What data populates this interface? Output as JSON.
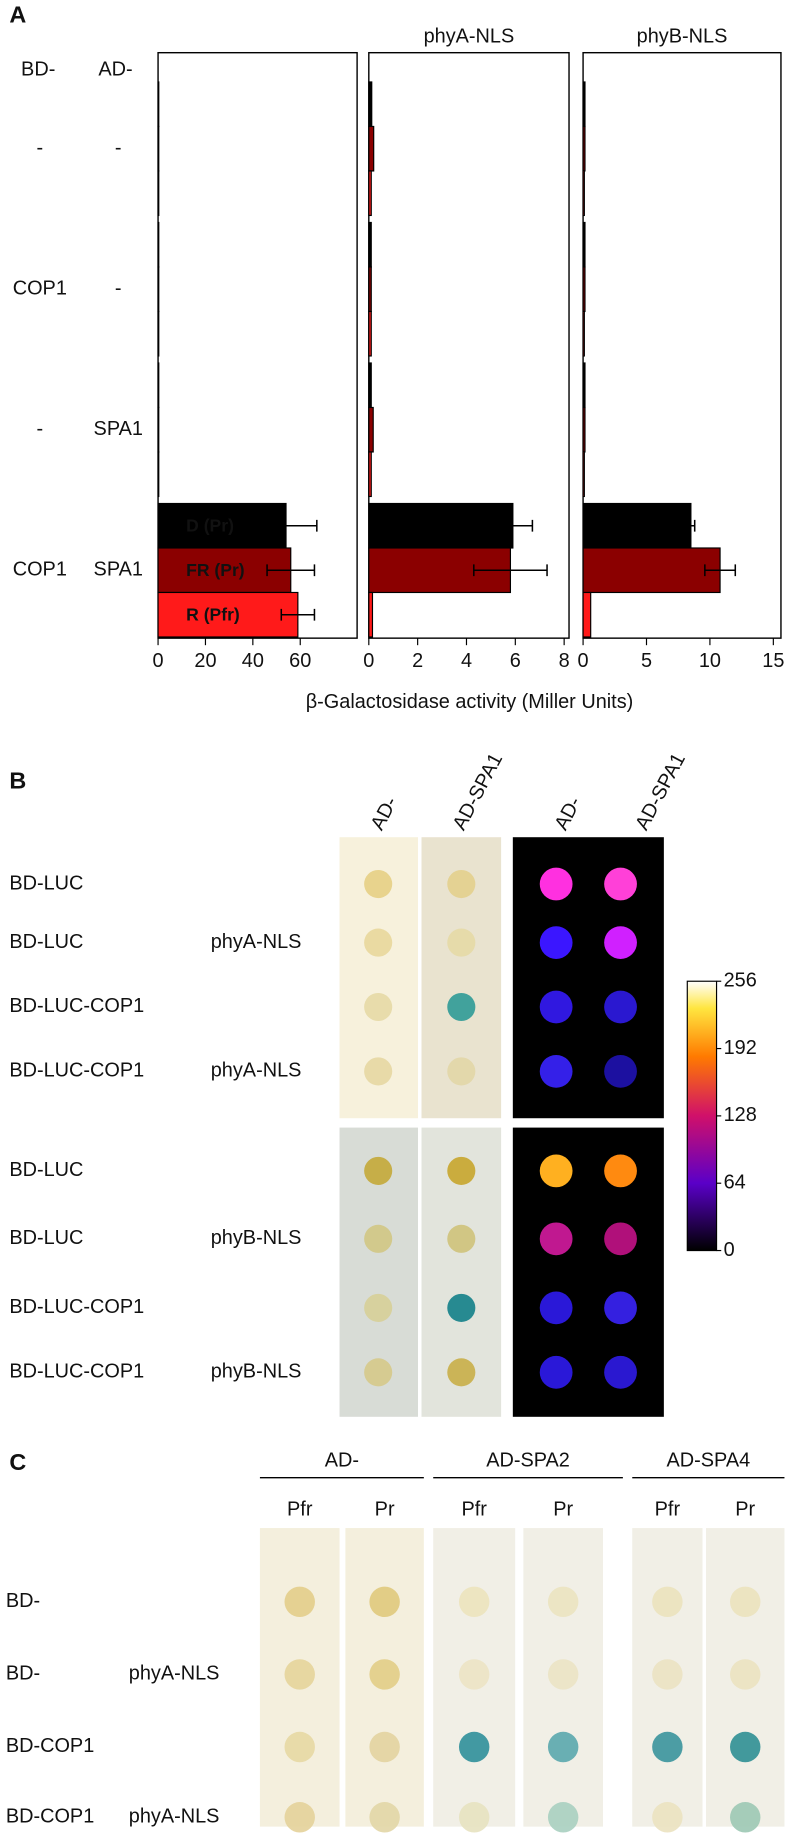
{
  "panel_labels": [
    "A",
    "B",
    "C"
  ],
  "chart_data": [
    {
      "type": "bar",
      "orientation": "horizontal",
      "header": [
        "BD-",
        "AD-"
      ],
      "categories": [
        [
          "-",
          "-"
        ],
        [
          "COP1",
          "-"
        ],
        [
          "-",
          "SPA1"
        ],
        [
          "COP1",
          "SPA1"
        ]
      ],
      "xlabel": "β-Galactosidase activity (Miller Units)",
      "xlim": [
        0,
        84
      ],
      "xticks": [
        0,
        20,
        40,
        60
      ],
      "series": [
        {
          "name": "D (Pr)",
          "color": "#000000",
          "values": [
            0.3,
            0.3,
            0.3,
            54
          ],
          "errors": [
            null,
            null,
            null,
            13
          ]
        },
        {
          "name": "FR (Pr)",
          "color": "#8b0000",
          "values": [
            0.3,
            0.3,
            0.3,
            56
          ],
          "errors": [
            null,
            null,
            null,
            10
          ]
        },
        {
          "name": "R (Pfr)",
          "color": "#ff1a1a",
          "values": [
            0.3,
            0.3,
            0.3,
            59
          ],
          "errors": [
            null,
            null,
            null,
            7
          ]
        }
      ]
    },
    {
      "type": "bar",
      "orientation": "horizontal",
      "title": "phyA-NLS",
      "xlim": [
        0,
        8.2
      ],
      "xticks": [
        0,
        2,
        4,
        6,
        8
      ],
      "series": [
        {
          "color": "#000000",
          "values": [
            0.12,
            0.1,
            0.1,
            5.9
          ],
          "errors": [
            null,
            null,
            null,
            0.8
          ]
        },
        {
          "color": "#8b0000",
          "values": [
            0.2,
            0.1,
            0.18,
            5.8
          ],
          "errors": [
            null,
            null,
            null,
            1.5
          ]
        },
        {
          "color": "#ff1a1a",
          "values": [
            0.1,
            0.1,
            0.1,
            0.15
          ],
          "errors": [
            null,
            null,
            null,
            null
          ]
        }
      ]
    },
    {
      "type": "bar",
      "orientation": "horizontal",
      "title": "phyB-NLS",
      "xlim": [
        0,
        15.6
      ],
      "xticks": [
        0,
        5,
        10,
        15
      ],
      "series": [
        {
          "color": "#000000",
          "values": [
            0.15,
            0.15,
            0.15,
            8.5
          ],
          "errors": [
            null,
            null,
            null,
            0.3
          ]
        },
        {
          "color": "#8b0000",
          "values": [
            0.15,
            0.15,
            0.15,
            10.8
          ],
          "errors": [
            null,
            null,
            null,
            1.2
          ]
        },
        {
          "color": "#ff1a1a",
          "values": [
            0.1,
            0.1,
            0.1,
            0.6
          ],
          "errors": [
            null,
            null,
            null,
            null
          ]
        }
      ]
    }
  ],
  "panel_b": {
    "columns": [
      "AD-",
      "AD-SPA1",
      "AD-",
      "AD-SPA1"
    ],
    "blocks": [
      {
        "bd": [
          "BD-LUC",
          "BD-LUC",
          "BD-LUC-COP1",
          "BD-LUC-COP1"
        ],
        "phy": [
          null,
          "phyA-NLS",
          null,
          "phyA-NLS"
        ]
      },
      {
        "bd": [
          "BD-LUC",
          "BD-LUC",
          "BD-LUC-COP1",
          "BD-LUC-COP1"
        ],
        "phy": [
          null,
          "phyB-NLS",
          null,
          "phyB-NLS"
        ]
      }
    ],
    "colorbar": {
      "range": [
        0,
        256
      ],
      "ticks": [
        256,
        192,
        128,
        64,
        0
      ]
    }
  },
  "panel_c": {
    "groups": [
      "AD-",
      "AD-SPA2",
      "AD-SPA4"
    ],
    "columns": [
      "Pfr",
      "Pr",
      "Pfr",
      "Pr",
      "Pfr",
      "Pr"
    ],
    "bd": [
      "BD-",
      "BD-",
      "BD-COP1",
      "BD-COP1"
    ],
    "phy": [
      null,
      "phyA-NLS",
      null,
      "phyA-NLS"
    ]
  }
}
